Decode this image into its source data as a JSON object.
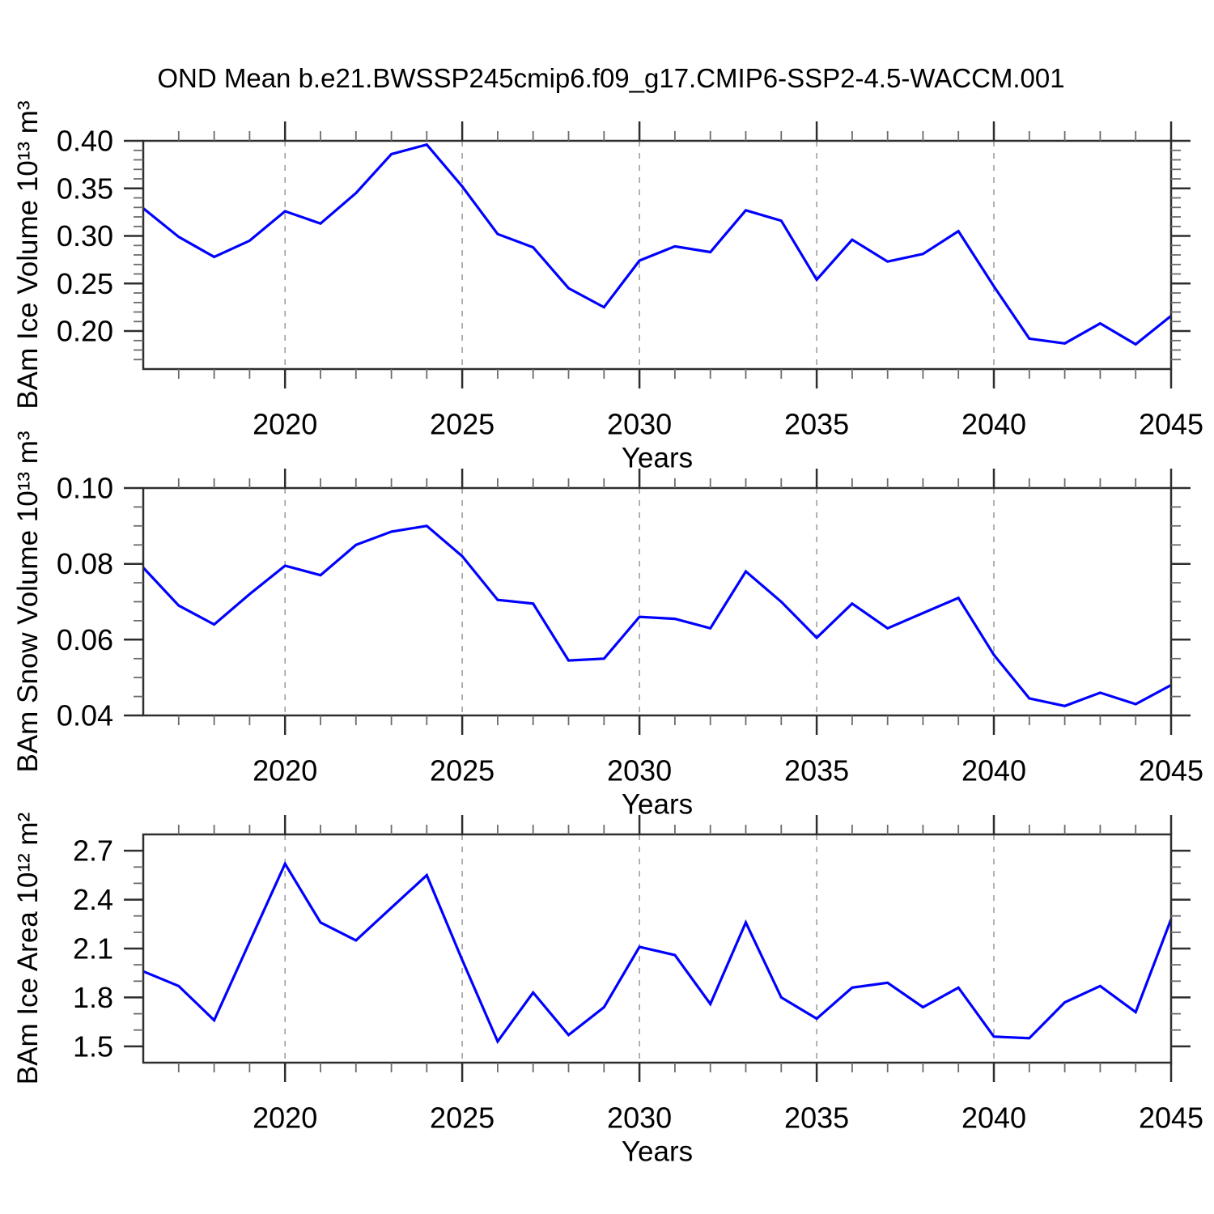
{
  "title": "OND Mean b.e21.BWSSP245cmip6.f09_g17.CMIP6-SSP2-4.5-WACCM.001",
  "colors": {
    "line": "#0000ff",
    "axis": "#2e2e2e",
    "grid": "#999999",
    "text": "#000000",
    "background": "#ffffff"
  },
  "x_axis": {
    "label": "Years",
    "range": [
      2016,
      2045
    ],
    "major_ticks": [
      2020,
      2025,
      2030,
      2035,
      2040,
      2045
    ],
    "major_tick_labels": [
      "2020",
      "2025",
      "2030",
      "2035",
      "2040",
      "2045"
    ],
    "minor_step": 1,
    "gridline_years": [
      2020,
      2025,
      2030,
      2035,
      2040
    ]
  },
  "chart_data": [
    {
      "type": "line",
      "title": "OND Mean b.e21.BWSSP245cmip6.f09_g17.CMIP6-SSP2-4.5-WACCM.001",
      "ylabel": "BAm Ice Volume 10¹³ m³",
      "xlabel": "Years",
      "ylim": [
        0.16,
        0.4
      ],
      "yticks": [
        0.2,
        0.25,
        0.3,
        0.35,
        0.4
      ],
      "ytick_labels": [
        "0.20",
        "0.25",
        "0.30",
        "0.35",
        "0.40"
      ],
      "yminor_step": 0.01,
      "legend": "none",
      "grid": "vertical-dashed",
      "x": [
        2016,
        2017,
        2018,
        2019,
        2020,
        2021,
        2022,
        2023,
        2024,
        2025,
        2026,
        2027,
        2028,
        2029,
        2030,
        2031,
        2032,
        2033,
        2034,
        2035,
        2036,
        2037,
        2038,
        2039,
        2040,
        2041,
        2042,
        2043,
        2044,
        2045
      ],
      "values": [
        0.329,
        0.299,
        0.278,
        0.295,
        0.326,
        0.313,
        0.345,
        0.386,
        0.396,
        0.352,
        0.302,
        0.288,
        0.245,
        0.225,
        0.274,
        0.289,
        0.283,
        0.327,
        0.316,
        0.254,
        0.296,
        0.273,
        0.281,
        0.305,
        0.247,
        0.192,
        0.187,
        0.208,
        0.186,
        0.216
      ]
    },
    {
      "type": "line",
      "title": "",
      "ylabel": "BAm Snow Volume 10¹³ m³",
      "xlabel": "Years",
      "ylim": [
        0.04,
        0.1
      ],
      "yticks": [
        0.04,
        0.06,
        0.08,
        0.1
      ],
      "ytick_labels": [
        "0.04",
        "0.06",
        "0.08",
        "0.10"
      ],
      "yminor_step": 0.005,
      "legend": "none",
      "grid": "vertical-dashed",
      "x": [
        2016,
        2017,
        2018,
        2019,
        2020,
        2021,
        2022,
        2023,
        2024,
        2025,
        2026,
        2027,
        2028,
        2029,
        2030,
        2031,
        2032,
        2033,
        2034,
        2035,
        2036,
        2037,
        2038,
        2039,
        2040,
        2041,
        2042,
        2043,
        2044,
        2045
      ],
      "values": [
        0.079,
        0.069,
        0.064,
        0.072,
        0.0795,
        0.077,
        0.085,
        0.0885,
        0.09,
        0.082,
        0.0705,
        0.0695,
        0.0545,
        0.055,
        0.066,
        0.0655,
        0.063,
        0.078,
        0.07,
        0.0605,
        0.0695,
        0.063,
        0.067,
        0.071,
        0.056,
        0.0445,
        0.0425,
        0.046,
        0.043,
        0.048
      ]
    },
    {
      "type": "line",
      "title": "",
      "ylabel": "BAm Ice Area 10¹² m²",
      "xlabel": "Years",
      "ylim": [
        1.4,
        2.8
      ],
      "yticks": [
        1.5,
        1.8,
        2.1,
        2.4,
        2.7
      ],
      "ytick_labels": [
        "1.5",
        "1.8",
        "2.1",
        "2.4",
        "2.7"
      ],
      "yminor_step": 0.1,
      "legend": "none",
      "grid": "vertical-dashed",
      "x": [
        2016,
        2017,
        2018,
        2019,
        2020,
        2021,
        2022,
        2023,
        2024,
        2025,
        2026,
        2027,
        2028,
        2029,
        2030,
        2031,
        2032,
        2033,
        2034,
        2035,
        2036,
        2037,
        2038,
        2039,
        2040,
        2041,
        2042,
        2043,
        2044,
        2045
      ],
      "values": [
        1.96,
        1.87,
        1.66,
        2.14,
        2.62,
        2.26,
        2.15,
        2.35,
        2.55,
        2.03,
        1.53,
        1.83,
        1.57,
        1.74,
        2.11,
        2.06,
        1.76,
        2.26,
        1.8,
        1.67,
        1.86,
        1.89,
        1.74,
        1.86,
        1.56,
        1.55,
        1.77,
        1.87,
        1.71,
        2.28
      ]
    }
  ]
}
